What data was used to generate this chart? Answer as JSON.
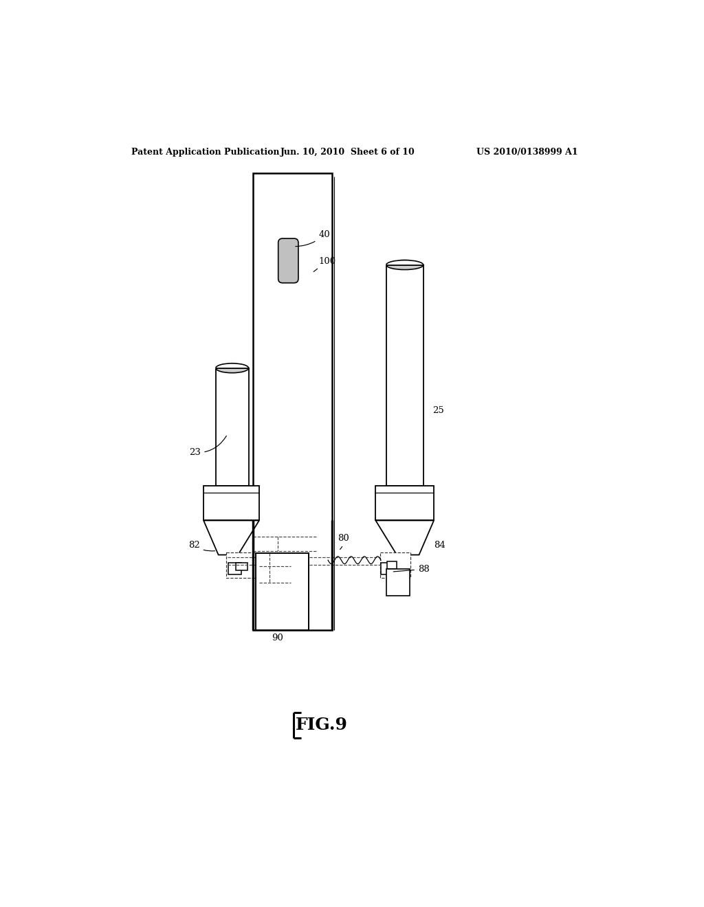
{
  "bg_color": "#ffffff",
  "header_left": "Patent Application Publication",
  "header_mid": "Jun. 10, 2010  Sheet 6 of 10",
  "header_right": "US 2010/0138999 A1",
  "lw_main": 1.5,
  "lw_thin": 0.9,
  "lw_dash": 0.85
}
